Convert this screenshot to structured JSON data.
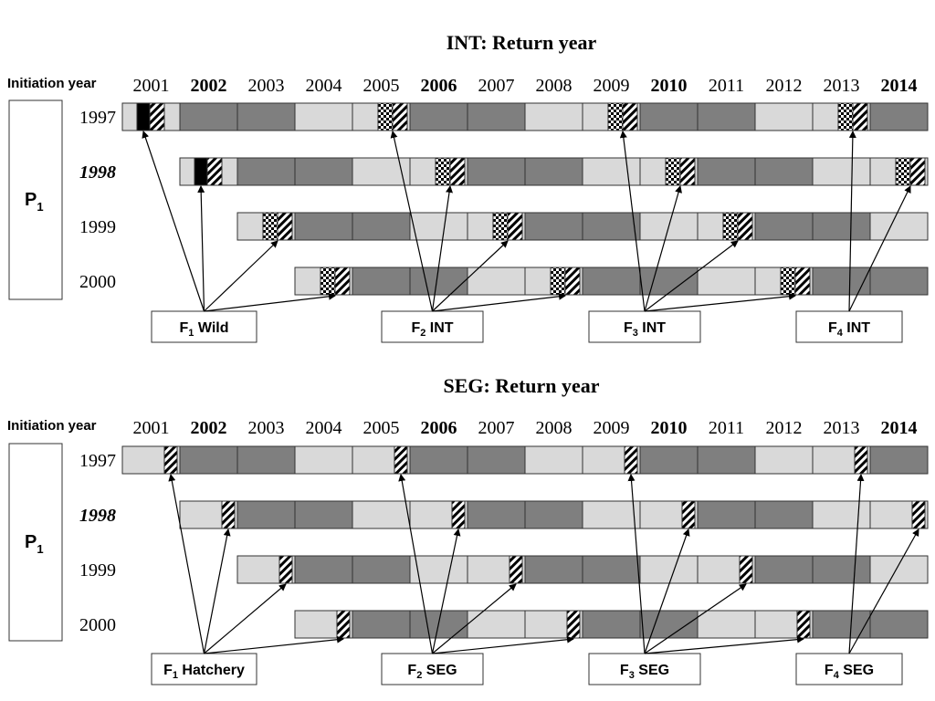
{
  "panels": [
    {
      "title": "INT: Return year",
      "initiation_label": "Initiation year",
      "group_label": "P",
      "group_sub": "1",
      "years": [
        "2001",
        "2002",
        "2003",
        "2004",
        "2005",
        "2006",
        "2007",
        "2008",
        "2009",
        "2010",
        "2011",
        "2012",
        "2013",
        "2014"
      ],
      "bold_years": [
        "2002",
        "2006",
        "2010",
        "2014"
      ],
      "rows": [
        {
          "label": "1997",
          "italic_bold": false
        },
        {
          "label": "1998",
          "italic_bold": true
        },
        {
          "label": "1999",
          "italic_bold": false
        },
        {
          "label": "2000",
          "italic_bold": false
        }
      ],
      "generations": [
        {
          "prefix": "F",
          "sub": "1",
          "name": "Wild"
        },
        {
          "prefix": "F",
          "sub": "2",
          "name": "INT"
        },
        {
          "prefix": "F",
          "sub": "3",
          "name": "INT"
        },
        {
          "prefix": "F",
          "sub": "4",
          "name": "INT"
        }
      ]
    },
    {
      "title": "SEG: Return year",
      "initiation_label": "Initiation year",
      "group_label": "P",
      "group_sub": "1",
      "years": [
        "2001",
        "2002",
        "2003",
        "2004",
        "2005",
        "2006",
        "2007",
        "2008",
        "2009",
        "2010",
        "2011",
        "2012",
        "2013",
        "2014"
      ],
      "bold_years": [
        "2002",
        "2006",
        "2010",
        "2014"
      ],
      "rows": [
        {
          "label": "1997",
          "italic_bold": false
        },
        {
          "label": "1998",
          "italic_bold": true
        },
        {
          "label": "1999",
          "italic_bold": false
        },
        {
          "label": "2000",
          "italic_bold": false
        }
      ],
      "generations": [
        {
          "prefix": "F",
          "sub": "1",
          "name": "Hatchery"
        },
        {
          "prefix": "F",
          "sub": "2",
          "name": "SEG"
        },
        {
          "prefix": "F",
          "sub": "3",
          "name": "SEG"
        },
        {
          "prefix": "F",
          "sub": "4",
          "name": "SEG"
        }
      ]
    }
  ],
  "colors": {
    "light_cell": "#d9d9d9",
    "dark_cell": "#7f7f7f",
    "border": "#333333",
    "text": "#000000"
  }
}
